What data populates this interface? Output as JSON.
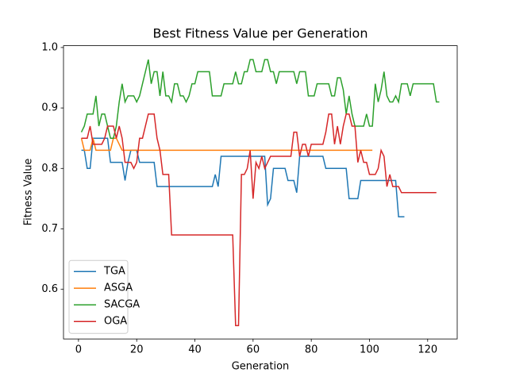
{
  "chart_data": {
    "type": "line",
    "title": "Best Fitness Value per Generation",
    "x_label": "Generation",
    "y_label": "Fitness Value",
    "x": [
      1,
      2,
      3,
      4,
      5,
      6,
      7,
      8,
      9,
      10,
      11,
      12,
      13,
      14,
      15,
      16,
      17,
      18,
      19,
      20,
      21,
      22,
      23,
      24,
      25,
      26,
      27,
      28,
      29,
      30,
      31,
      32,
      33,
      34,
      35,
      36,
      37,
      38,
      39,
      40,
      41,
      42,
      43,
      44,
      45,
      46,
      47,
      48,
      49,
      50,
      51,
      52,
      53,
      54,
      55,
      56,
      57,
      58,
      59,
      60,
      61,
      62,
      63,
      64,
      65,
      66,
      67,
      68,
      69,
      70,
      71,
      72,
      73,
      74,
      75,
      76,
      77,
      78,
      79,
      80,
      81,
      82,
      83,
      84,
      85,
      86,
      87,
      88,
      89,
      90,
      91,
      92,
      93,
      94,
      95,
      96,
      97,
      98,
      99,
      100,
      101,
      102,
      103,
      104,
      105,
      106,
      107,
      108,
      109,
      110,
      111,
      112,
      113,
      114,
      115,
      116,
      117,
      118,
      119,
      120,
      121,
      122,
      123,
      124
    ],
    "series": [
      {
        "name": "TGA",
        "color": "#1f77b4",
        "values": [
          0.83,
          0.83,
          0.8,
          0.8,
          0.85,
          0.85,
          0.85,
          0.85,
          0.85,
          0.85,
          0.81,
          0.81,
          0.81,
          0.81,
          0.81,
          0.78,
          0.81,
          0.83,
          0.83,
          0.83,
          0.81,
          0.81,
          0.81,
          0.81,
          0.81,
          0.81,
          0.77,
          0.77,
          0.77,
          0.77,
          0.77,
          0.77,
          0.77,
          0.77,
          0.77,
          0.77,
          0.77,
          0.77,
          0.77,
          0.77,
          0.77,
          0.77,
          0.77,
          0.77,
          0.77,
          0.77,
          0.79,
          0.77,
          0.82,
          0.82,
          0.82,
          0.82,
          0.82,
          0.82,
          0.82,
          0.82,
          0.82,
          0.82,
          0.82,
          0.82,
          0.82,
          0.82,
          0.82,
          0.82,
          0.74,
          0.75,
          0.8,
          0.8,
          0.8,
          0.8,
          0.8,
          0.78,
          0.78,
          0.78,
          0.76,
          0.82,
          0.82,
          0.82,
          0.82,
          0.82,
          0.82,
          0.82,
          0.82,
          0.82,
          0.8,
          0.8,
          0.8,
          0.8,
          0.8,
          0.8,
          0.8,
          0.8,
          0.75,
          0.75,
          0.75,
          0.75,
          0.78,
          0.78,
          0.78,
          0.78,
          0.78,
          0.78,
          0.78,
          0.78,
          0.78,
          0.78,
          0.78,
          0.78,
          0.78,
          0.72,
          0.72,
          0.72,
          null,
          null,
          null,
          null,
          null,
          null,
          null,
          null,
          null,
          null,
          null,
          null
        ]
      },
      {
        "name": "ASGA",
        "color": "#ff7f0e",
        "values": [
          0.85,
          0.83,
          0.83,
          0.83,
          0.85,
          0.83,
          0.83,
          0.83,
          0.83,
          0.83,
          0.83,
          0.85,
          0.85,
          0.84,
          0.83,
          0.83,
          0.83,
          0.83,
          0.83,
          0.83,
          0.83,
          0.83,
          0.83,
          0.83,
          0.83,
          0.83,
          0.83,
          0.83,
          0.83,
          0.83,
          0.83,
          0.83,
          0.83,
          0.83,
          0.83,
          0.83,
          0.83,
          0.83,
          0.83,
          0.83,
          0.83,
          0.83,
          0.83,
          0.83,
          0.83,
          0.83,
          0.83,
          0.83,
          0.83,
          0.83,
          0.83,
          0.83,
          0.83,
          0.83,
          0.83,
          0.83,
          0.83,
          0.83,
          0.83,
          0.83,
          0.83,
          0.83,
          0.83,
          0.83,
          0.83,
          0.83,
          0.83,
          0.83,
          0.83,
          0.83,
          0.83,
          0.83,
          0.83,
          0.83,
          0.83,
          0.83,
          0.83,
          0.83,
          0.83,
          0.83,
          0.83,
          0.83,
          0.83,
          0.83,
          0.83,
          0.83,
          0.83,
          0.83,
          0.83,
          0.83,
          0.83,
          0.83,
          0.83,
          0.83,
          0.83,
          0.83,
          0.83,
          0.83,
          0.83,
          0.83,
          0.83,
          null,
          null,
          null,
          null,
          null,
          null,
          null,
          null,
          null,
          null,
          null,
          null,
          null,
          null,
          null,
          null,
          null,
          null,
          null,
          null,
          null,
          null,
          null
        ]
      },
      {
        "name": "SACGA",
        "color": "#2ca02c",
        "values": [
          0.86,
          0.87,
          0.89,
          0.89,
          0.89,
          0.92,
          0.87,
          0.89,
          0.89,
          0.87,
          0.85,
          0.85,
          0.87,
          0.91,
          0.94,
          0.91,
          0.92,
          0.92,
          0.92,
          0.91,
          0.92,
          0.94,
          0.96,
          0.98,
          0.94,
          0.96,
          0.96,
          0.92,
          0.96,
          0.92,
          0.92,
          0.91,
          0.94,
          0.94,
          0.92,
          0.92,
          0.91,
          0.92,
          0.94,
          0.94,
          0.96,
          0.96,
          0.96,
          0.96,
          0.96,
          0.92,
          0.92,
          0.92,
          0.92,
          0.94,
          0.94,
          0.94,
          0.94,
          0.96,
          0.94,
          0.94,
          0.96,
          0.96,
          0.98,
          0.98,
          0.96,
          0.96,
          0.96,
          0.98,
          0.98,
          0.96,
          0.96,
          0.94,
          0.96,
          0.96,
          0.96,
          0.96,
          0.96,
          0.96,
          0.94,
          0.96,
          0.96,
          0.96,
          0.92,
          0.92,
          0.92,
          0.94,
          0.94,
          0.94,
          0.94,
          0.94,
          0.92,
          0.92,
          0.95,
          0.95,
          0.93,
          0.89,
          0.92,
          0.89,
          0.87,
          0.87,
          0.87,
          0.87,
          0.89,
          0.87,
          0.87,
          0.94,
          0.91,
          0.93,
          0.96,
          0.92,
          0.91,
          0.91,
          0.92,
          0.91,
          0.94,
          0.94,
          0.94,
          0.92,
          0.94,
          0.94,
          0.94,
          0.94,
          0.94,
          0.94,
          0.94,
          0.94,
          0.91,
          0.91
        ]
      },
      {
        "name": "OGA",
        "color": "#d62728",
        "values": [
          0.85,
          0.85,
          0.85,
          0.87,
          0.84,
          0.84,
          0.84,
          0.84,
          0.85,
          0.87,
          0.87,
          0.87,
          0.85,
          0.87,
          0.85,
          0.81,
          0.81,
          0.81,
          0.8,
          0.81,
          0.85,
          0.85,
          0.87,
          0.89,
          0.89,
          0.89,
          0.85,
          0.83,
          0.79,
          0.79,
          0.79,
          0.69,
          0.69,
          0.69,
          0.69,
          0.69,
          0.69,
          0.69,
          0.69,
          0.69,
          0.69,
          0.69,
          0.69,
          0.69,
          0.69,
          0.69,
          0.69,
          0.69,
          0.69,
          0.69,
          0.69,
          0.69,
          0.69,
          0.54,
          0.54,
          0.79,
          0.79,
          0.8,
          0.83,
          0.75,
          0.81,
          0.8,
          0.82,
          0.8,
          0.81,
          0.82,
          0.82,
          0.82,
          0.82,
          0.82,
          0.82,
          0.82,
          0.82,
          0.86,
          0.86,
          0.82,
          0.84,
          0.84,
          0.82,
          0.84,
          0.84,
          0.84,
          0.84,
          0.84,
          0.86,
          0.89,
          0.89,
          0.84,
          0.87,
          0.84,
          0.87,
          0.89,
          0.89,
          0.87,
          0.87,
          0.81,
          0.83,
          0.81,
          0.81,
          0.79,
          0.79,
          0.79,
          0.8,
          0.83,
          0.82,
          0.77,
          0.79,
          0.77,
          0.77,
          0.77,
          0.76,
          0.76,
          0.76,
          0.76,
          0.76,
          0.76,
          0.76,
          0.76,
          0.76,
          0.76,
          0.76,
          0.76,
          0.76,
          null
        ]
      }
    ],
    "xlim": [
      -5.15,
      130.15
    ],
    "ylim": [
      0.518,
      1.003
    ],
    "xticks": [
      0,
      20,
      40,
      60,
      80,
      100,
      120
    ],
    "yticks": [
      0.6,
      0.7,
      0.8,
      0.9,
      {
        "value": 1,
        "label": "1.0"
      }
    ],
    "legend": "lower left"
  }
}
